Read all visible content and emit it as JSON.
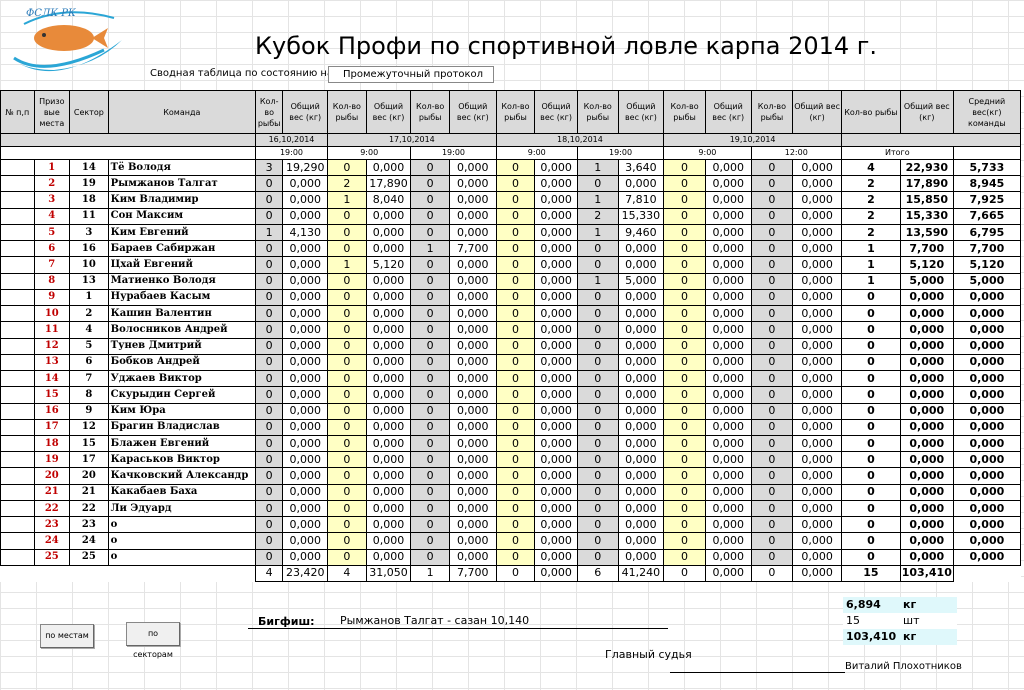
{
  "header": {
    "logo_text": "ФСЛК РК",
    "title": "Кубок Профи по спортивной ловле карпа 2014 г.",
    "status_label": "Сводная таблица по состоянию на:",
    "status_value": "Промежуточный протокол"
  },
  "columns": {
    "num": "№ п,п",
    "place": "Призо вые места",
    "sector": "Сектор",
    "team": "Команда",
    "count": "Кол-во рыбы",
    "weight": "Общий вес (кг)",
    "total_count": "Кол-во рыбы",
    "total_weight": "Общий вес (кг)",
    "avg": "Средний вес(кг) команды"
  },
  "dates": [
    "16,10,2014",
    "17,10,2014",
    "18,10,2014",
    "19,10,2014"
  ],
  "times": [
    "19:00",
    "9:00",
    "19:00",
    "9:00",
    "19:00",
    "9:00",
    "12:00"
  ],
  "total_label": "Итого",
  "rows": [
    {
      "place": "1",
      "sector": "14",
      "team": "Тё Володя",
      "c": [
        "3",
        "0",
        "0",
        "0",
        "1",
        "0",
        "0"
      ],
      "w": [
        "19,290",
        "0,000",
        "0,000",
        "0,000",
        "3,640",
        "0,000",
        "0,000"
      ],
      "tc": "4",
      "tw": "22,930",
      "avg": "5,733"
    },
    {
      "place": "2",
      "sector": "19",
      "team": "Рымжанов Талгат",
      "c": [
        "0",
        "2",
        "0",
        "0",
        "0",
        "0",
        "0"
      ],
      "w": [
        "0,000",
        "17,890",
        "0,000",
        "0,000",
        "0,000",
        "0,000",
        "0,000"
      ],
      "tc": "2",
      "tw": "17,890",
      "avg": "8,945"
    },
    {
      "place": "3",
      "sector": "18",
      "team": " Ким Владимир",
      "c": [
        "0",
        "1",
        "0",
        "0",
        "1",
        "0",
        "0"
      ],
      "w": [
        "0,000",
        "8,040",
        "0,000",
        "0,000",
        "7,810",
        "0,000",
        "0,000"
      ],
      "tc": "2",
      "tw": "15,850",
      "avg": "7,925"
    },
    {
      "place": "4",
      "sector": "11",
      "team": "Сон Максим",
      "c": [
        "0",
        "0",
        "0",
        "0",
        "2",
        "0",
        "0"
      ],
      "w": [
        "0,000",
        "0,000",
        "0,000",
        "0,000",
        "15,330",
        "0,000",
        "0,000"
      ],
      "tc": "2",
      "tw": "15,330",
      "avg": "7,665"
    },
    {
      "place": "5",
      "sector": "3",
      "team": "Ким Евгений",
      "c": [
        "1",
        "0",
        "0",
        "0",
        "1",
        "0",
        "0"
      ],
      "w": [
        "4,130",
        "0,000",
        "0,000",
        "0,000",
        "9,460",
        "0,000",
        "0,000"
      ],
      "tc": "2",
      "tw": "13,590",
      "avg": "6,795"
    },
    {
      "place": "6",
      "sector": "16",
      "team": "Бараев Сабиржан",
      "c": [
        "0",
        "0",
        "1",
        "0",
        "0",
        "0",
        "0"
      ],
      "w": [
        "0,000",
        "0,000",
        "7,700",
        "0,000",
        "0,000",
        "0,000",
        "0,000"
      ],
      "tc": "1",
      "tw": "7,700",
      "avg": "7,700"
    },
    {
      "place": "7",
      "sector": "10",
      "team": "Цхай Евгений",
      "c": [
        "0",
        "1",
        "0",
        "0",
        "0",
        "0",
        "0"
      ],
      "w": [
        "0,000",
        "5,120",
        "0,000",
        "0,000",
        "0,000",
        "0,000",
        "0,000"
      ],
      "tc": "1",
      "tw": "5,120",
      "avg": "5,120"
    },
    {
      "place": "8",
      "sector": "13",
      "team": "Матиенко Володя",
      "c": [
        "0",
        "0",
        "0",
        "0",
        "1",
        "0",
        "0"
      ],
      "w": [
        "0,000",
        "0,000",
        "0,000",
        "0,000",
        "5,000",
        "0,000",
        "0,000"
      ],
      "tc": "1",
      "tw": "5,000",
      "avg": "5,000"
    },
    {
      "place": "9",
      "sector": "1",
      "team": "Нурабаев Касым",
      "c": [
        "0",
        "0",
        "0",
        "0",
        "0",
        "0",
        "0"
      ],
      "w": [
        "0,000",
        "0,000",
        "0,000",
        "0,000",
        "0,000",
        "0,000",
        "0,000"
      ],
      "tc": "0",
      "tw": "0,000",
      "avg": "0,000"
    },
    {
      "place": "10",
      "sector": "2",
      "team": "Кашин Валентин",
      "c": [
        "0",
        "0",
        "0",
        "0",
        "0",
        "0",
        "0"
      ],
      "w": [
        "0,000",
        "0,000",
        "0,000",
        "0,000",
        "0,000",
        "0,000",
        "0,000"
      ],
      "tc": "0",
      "tw": "0,000",
      "avg": "0,000"
    },
    {
      "place": "11",
      "sector": "4",
      "team": "Волосников Андрей",
      "c": [
        "0",
        "0",
        "0",
        "0",
        "0",
        "0",
        "0"
      ],
      "w": [
        "0,000",
        "0,000",
        "0,000",
        "0,000",
        "0,000",
        "0,000",
        "0,000"
      ],
      "tc": "0",
      "tw": "0,000",
      "avg": "0,000"
    },
    {
      "place": "12",
      "sector": "5",
      "team": "Тунев Дмитрий",
      "c": [
        "0",
        "0",
        "0",
        "0",
        "0",
        "0",
        "0"
      ],
      "w": [
        "0,000",
        "0,000",
        "0,000",
        "0,000",
        "0,000",
        "0,000",
        "0,000"
      ],
      "tc": "0",
      "tw": "0,000",
      "avg": "0,000"
    },
    {
      "place": "13",
      "sector": "6",
      "team": "Бобков Андрей",
      "c": [
        "0",
        "0",
        "0",
        "0",
        "0",
        "0",
        "0"
      ],
      "w": [
        "0,000",
        "0,000",
        "0,000",
        "0,000",
        "0,000",
        "0,000",
        "0,000"
      ],
      "tc": "0",
      "tw": "0,000",
      "avg": "0,000"
    },
    {
      "place": "14",
      "sector": "7",
      "team": "Уджаев Виктор",
      "c": [
        "0",
        "0",
        "0",
        "0",
        "0",
        "0",
        "0"
      ],
      "w": [
        "0,000",
        "0,000",
        "0,000",
        "0,000",
        "0,000",
        "0,000",
        "0,000"
      ],
      "tc": "0",
      "tw": "0,000",
      "avg": "0,000"
    },
    {
      "place": "15",
      "sector": "8",
      "team": "Скурыдин Сергей",
      "c": [
        "0",
        "0",
        "0",
        "0",
        "0",
        "0",
        "0"
      ],
      "w": [
        "0,000",
        "0,000",
        "0,000",
        "0,000",
        "0,000",
        "0,000",
        "0,000"
      ],
      "tc": "0",
      "tw": "0,000",
      "avg": "0,000"
    },
    {
      "place": "16",
      "sector": "9",
      "team": "Ким Юра",
      "c": [
        "0",
        "0",
        "0",
        "0",
        "0",
        "0",
        "0"
      ],
      "w": [
        "0,000",
        "0,000",
        "0,000",
        "0,000",
        "0,000",
        "0,000",
        "0,000"
      ],
      "tc": "0",
      "tw": "0,000",
      "avg": "0,000"
    },
    {
      "place": "17",
      "sector": "12",
      "team": "Брагин Владислав",
      "c": [
        "0",
        "0",
        "0",
        "0",
        "0",
        "0",
        "0"
      ],
      "w": [
        "0,000",
        "0,000",
        "0,000",
        "0,000",
        "0,000",
        "0,000",
        "0,000"
      ],
      "tc": "0",
      "tw": "0,000",
      "avg": "0,000"
    },
    {
      "place": "18",
      "sector": "15",
      "team": "Блажен Евгений",
      "c": [
        "0",
        "0",
        "0",
        "0",
        "0",
        "0",
        "0"
      ],
      "w": [
        "0,000",
        "0,000",
        "0,000",
        "0,000",
        "0,000",
        "0,000",
        "0,000"
      ],
      "tc": "0",
      "tw": "0,000",
      "avg": "0,000"
    },
    {
      "place": "19",
      "sector": "17",
      "team": " Караськов Виктор",
      "c": [
        "0",
        "0",
        "0",
        "0",
        "0",
        "0",
        "0"
      ],
      "w": [
        "0,000",
        "0,000",
        "0,000",
        "0,000",
        "0,000",
        "0,000",
        "0,000"
      ],
      "tc": "0",
      "tw": "0,000",
      "avg": "0,000"
    },
    {
      "place": "20",
      "sector": "20",
      "team": "Качковский Александр",
      "c": [
        "0",
        "0",
        "0",
        "0",
        "0",
        "0",
        "0"
      ],
      "w": [
        "0,000",
        "0,000",
        "0,000",
        "0,000",
        "0,000",
        "0,000",
        "0,000"
      ],
      "tc": "0",
      "tw": "0,000",
      "avg": "0,000"
    },
    {
      "place": "21",
      "sector": "21",
      "team": "Какабаев Баха",
      "c": [
        "0",
        "0",
        "0",
        "0",
        "0",
        "0",
        "0"
      ],
      "w": [
        "0,000",
        "0,000",
        "0,000",
        "0,000",
        "0,000",
        "0,000",
        "0,000"
      ],
      "tc": "0",
      "tw": "0,000",
      "avg": "0,000"
    },
    {
      "place": "22",
      "sector": "22",
      "team": "Ли Эдуард",
      "c": [
        "0",
        "0",
        "0",
        "0",
        "0",
        "0",
        "0"
      ],
      "w": [
        "0,000",
        "0,000",
        "0,000",
        "0,000",
        "0,000",
        "0,000",
        "0,000"
      ],
      "tc": "0",
      "tw": "0,000",
      "avg": "0,000"
    },
    {
      "place": "23",
      "sector": "23",
      "team": "о",
      "c": [
        "0",
        "0",
        "0",
        "0",
        "0",
        "0",
        "0"
      ],
      "w": [
        "0,000",
        "0,000",
        "0,000",
        "0,000",
        "0,000",
        "0,000",
        "0,000"
      ],
      "tc": "0",
      "tw": "0,000",
      "avg": "0,000"
    },
    {
      "place": "24",
      "sector": "24",
      "team": "о",
      "c": [
        "0",
        "0",
        "0",
        "0",
        "0",
        "0",
        "0"
      ],
      "w": [
        "0,000",
        "0,000",
        "0,000",
        "0,000",
        "0,000",
        "0,000",
        "0,000"
      ],
      "tc": "0",
      "tw": "0,000",
      "avg": "0,000"
    },
    {
      "place": "25",
      "sector": "25",
      "team": "о",
      "c": [
        "0",
        "0",
        "0",
        "0",
        "0",
        "0",
        "0"
      ],
      "w": [
        "0,000",
        "0,000",
        "0,000",
        "0,000",
        "0,000",
        "0,000",
        "0,000"
      ],
      "tc": "0",
      "tw": "0,000",
      "avg": "0,000"
    }
  ],
  "totals": {
    "c": [
      "4",
      "4",
      "1",
      "0",
      "6",
      "0",
      "0"
    ],
    "w": [
      "23,420",
      "31,050",
      "7,700",
      "0,000",
      "41,240",
      "0,000",
      "0,000"
    ],
    "tc": "15",
    "tw": "103,410"
  },
  "buttons": {
    "by_place": "по местам",
    "by_sector": "по секторам"
  },
  "bigfish": {
    "label": "Бигфиш:",
    "value": "Рымжанов Талгат - сазан 10,140"
  },
  "summary": [
    {
      "value": "6,894",
      "unit": "кг"
    },
    {
      "value": "15",
      "unit": "шт"
    },
    {
      "value": "103,410",
      "unit": "кг"
    }
  ],
  "footer": {
    "judge_label": "Главный судья",
    "judge_name": "Виталий Плохотников"
  },
  "colors": {
    "highlight": "#ffffc4",
    "header_gray": "#dadada",
    "summary_cyan": "#dff8fb",
    "place_red": "#c00000"
  }
}
